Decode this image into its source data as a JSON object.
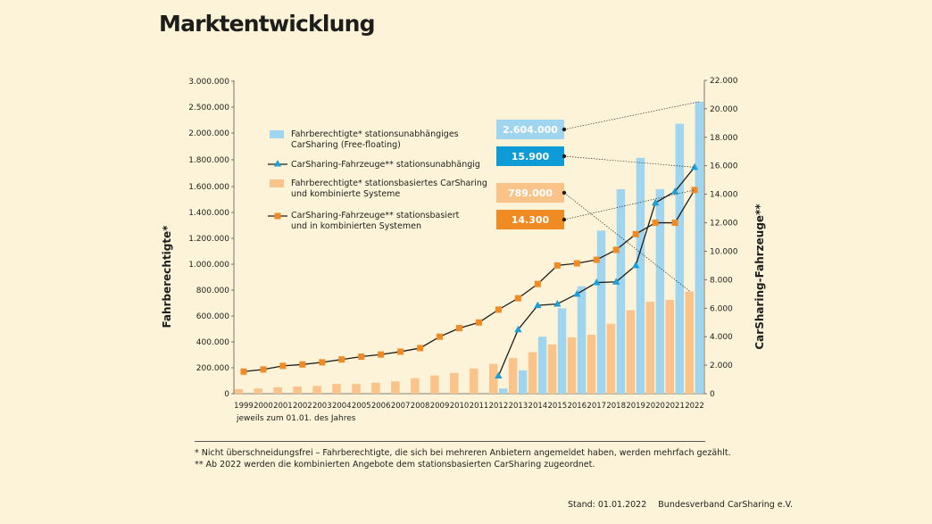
{
  "page": {
    "title": "Marktentwicklung",
    "footnotes": [
      "* Nicht überschneidungsfrei – Fahrberechtigte, die sich bei mehreren Anbietern angemeldet haben, werden mehrfach gezählt.",
      "** Ab 2022 werden die kombinierten Angebote dem stationsbasierten CarSharing zugeordnet."
    ],
    "source_date": "Stand: 01.01.2022",
    "source_org": "Bundesverband CarSharing e.V."
  },
  "colors": {
    "background": "#fdf3d8",
    "free_floating_bar": "#9fd5ee",
    "station_based_bar": "#f9c389",
    "free_floating_line_marker": "#1ba0d7",
    "station_based_line_marker": "#ef8a24",
    "callout_light_blue": "#9fd5ee",
    "callout_blue": "#0e9cd6",
    "callout_light_orange": "#f9c389",
    "callout_orange": "#f08a22"
  },
  "chart_data": {
    "type": "bar",
    "categories": [
      "1999",
      "2000",
      "2001",
      "2002",
      "2003",
      "2004",
      "2005",
      "2006",
      "2007",
      "2008",
      "2009",
      "2010",
      "2011",
      "2012",
      "2013",
      "2014",
      "2015",
      "2016",
      "2017",
      "2018",
      "2019",
      "2020",
      "2021",
      "2022"
    ],
    "xlabel": "jeweils zum 01.01. des Jahres",
    "ylabel_left": "Fahrberechtigte*",
    "ylabel_right": "CarSharing-Fahrzeuge**",
    "ylim_left": [
      0,
      3000000
    ],
    "ylim_right": [
      0,
      22000
    ],
    "yticks_left": [
      "0",
      "200.000",
      "400.000",
      "600.000",
      "800.000",
      "1.000.000",
      "1.200.000",
      "1.400.000",
      "1.600.000",
      "1.800.000",
      "2.000.000",
      "2.500.000",
      "3.000.000"
    ],
    "yticks_right": [
      "0",
      "2.000",
      "4.000",
      "6.000",
      "8.000",
      "10.000",
      "12.000",
      "14.000",
      "16.000",
      "18.000",
      "20.000",
      "22.000"
    ],
    "grid": false,
    "series": [
      {
        "name": "Fahrberechtigte* stationsbasiertes CarSharing und kombinierte Systeme",
        "legend_lines": [
          "Fahrberechtigte* stationsbasiertes CarSharing",
          "und kombinierte Systeme"
        ],
        "type": "bar",
        "axis": "left",
        "values": [
          35000,
          40000,
          50000,
          55000,
          60000,
          75000,
          75000,
          85000,
          95000,
          120000,
          140000,
          160000,
          195000,
          230000,
          275000,
          320000,
          380000,
          435000,
          455000,
          540000,
          645000,
          710000,
          725000,
          789000
        ]
      },
      {
        "name": "Fahrberechtigte* stationsunabhängiges CarSharing (Free-floating)",
        "legend_lines": [
          "Fahrberechtigte* stationsunabhängiges",
          "CarSharing (Free-floating)"
        ],
        "type": "bar",
        "axis": "left",
        "values": [
          null,
          null,
          null,
          null,
          null,
          null,
          null,
          null,
          null,
          null,
          null,
          null,
          null,
          40000,
          180000,
          440000,
          660000,
          830000,
          1260000,
          1580000,
          1815000,
          1580000,
          2180000,
          2604000
        ]
      },
      {
        "name": "CarSharing-Fahrzeuge** stationsunabhängig",
        "legend_lines": [
          "CarSharing-Fahrzeuge** stationsunabhängig"
        ],
        "type": "line",
        "marker": "triangle",
        "axis": "right",
        "values": [
          null,
          null,
          null,
          null,
          null,
          null,
          null,
          null,
          null,
          null,
          null,
          null,
          null,
          1250,
          4500,
          6200,
          6300,
          7000,
          7800,
          7850,
          9000,
          13400,
          14200,
          15900
        ]
      },
      {
        "name": "CarSharing-Fahrzeuge** stationsbasiert und in kombinierten Systemen",
        "legend_lines": [
          "CarSharing-Fahrzeuge** stationsbasiert",
          "und in kombinierten Systemen"
        ],
        "type": "line",
        "marker": "square",
        "axis": "right",
        "values": [
          1550,
          1700,
          1950,
          2050,
          2200,
          2400,
          2600,
          2750,
          2950,
          3200,
          4000,
          4600,
          5000,
          5900,
          6700,
          7700,
          9000,
          9150,
          9400,
          10100,
          11200,
          12000,
          12000,
          14300
        ]
      }
    ],
    "callouts": [
      {
        "label": "2.604.000",
        "series": 1
      },
      {
        "label": "15.900",
        "series": 2
      },
      {
        "label": "789.000",
        "series": 0
      },
      {
        "label": "14.300",
        "series": 3
      }
    ]
  }
}
